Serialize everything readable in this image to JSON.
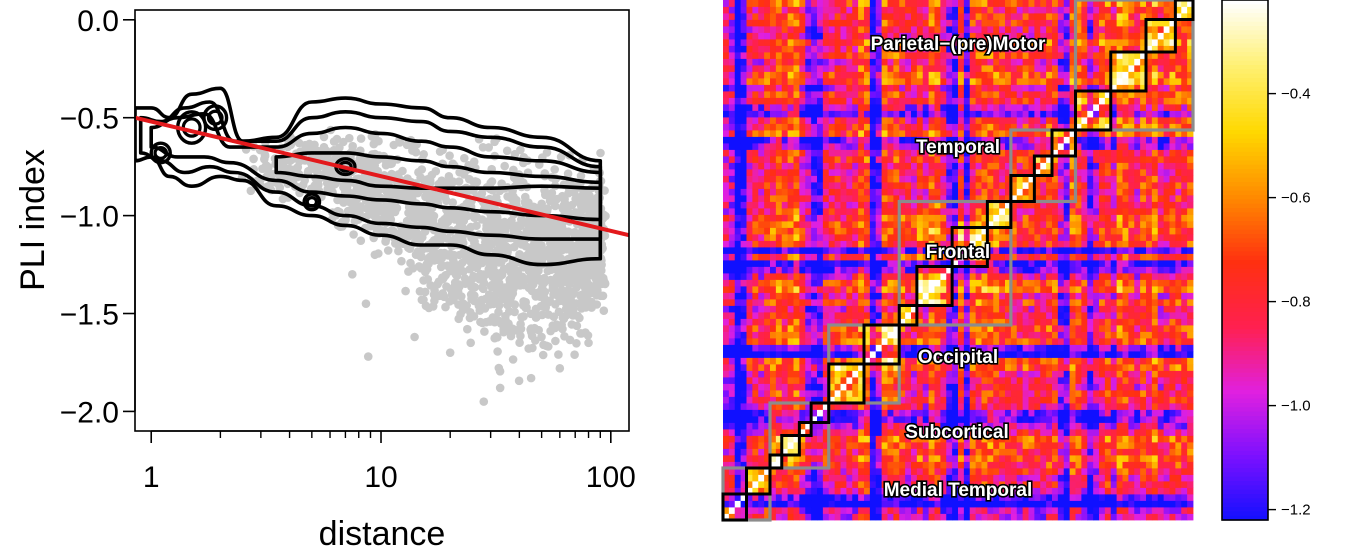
{
  "chart_data": [
    {
      "type": "scatter",
      "xlabel": "distance",
      "ylabel": "PLI index",
      "x_scale": "log",
      "xlim": [
        0.85,
        120
      ],
      "ylim": [
        -2.1,
        0.05
      ],
      "x_ticks": [
        {
          "value": 1,
          "label": "1"
        },
        {
          "value": 10,
          "label": "10"
        },
        {
          "value": 100,
          "label": "100"
        }
      ],
      "x_minor_ticks": [
        2,
        3,
        4,
        5,
        6,
        7,
        8,
        9,
        20,
        30,
        40,
        50,
        60,
        70,
        80,
        90
      ],
      "y_ticks": [
        {
          "value": 0.0,
          "label": "0.0"
        },
        {
          "value": -0.5,
          "label": "−0.5"
        },
        {
          "value": -1.0,
          "label": "−1.0"
        },
        {
          "value": -1.5,
          "label": "−1.5"
        },
        {
          "value": -2.0,
          "label": "−2.0"
        }
      ],
      "points_color": "#c8c8c8",
      "points_description_note": "",
      "scatter_envelope": [
        [
          2.5,
          -0.55,
          -0.95
        ],
        [
          5,
          -0.5,
          -1.0
        ],
        [
          10,
          -0.5,
          -1.3
        ],
        [
          20,
          -0.55,
          -1.75
        ],
        [
          40,
          -0.55,
          -1.9
        ],
        [
          90,
          -0.6,
          -1.7
        ]
      ],
      "scatter_outliers": [
        [
          8.6,
          -1.45
        ],
        [
          8.8,
          -1.72
        ],
        [
          7.5,
          -1.3
        ],
        [
          9.4,
          -1.2
        ],
        [
          6.5,
          -1.05
        ],
        [
          28,
          -1.95
        ],
        [
          33,
          -1.88
        ],
        [
          45,
          -1.83
        ],
        [
          60,
          -1.78
        ],
        [
          80,
          -1.65
        ],
        [
          14,
          -1.62
        ],
        [
          20,
          -1.7
        ]
      ],
      "regression_line": {
        "color": "#e3191c",
        "x": [
          0.85,
          120
        ],
        "y": [
          -0.5,
          -1.1
        ]
      },
      "contour_color": "#000000",
      "contour_levels": [
        {
          "x": [
            0.85,
            1.0,
            1.2,
            1.5,
            2.0,
            2.5,
            3.5,
            5,
            7,
            10,
            15,
            20,
            30,
            50,
            90
          ],
          "upper": [
            -0.45,
            -0.45,
            -0.5,
            -0.38,
            -0.35,
            -0.62,
            -0.6,
            -0.42,
            -0.4,
            -0.43,
            -0.45,
            -0.5,
            -0.55,
            -0.6,
            -0.72
          ],
          "lower": [
            -0.72,
            -0.7,
            -0.8,
            -0.85,
            -0.8,
            -0.82,
            -0.95,
            -1.0,
            -1.05,
            -1.1,
            -1.15,
            -1.15,
            -1.2,
            -1.25,
            -1.22
          ]
        },
        {
          "x": [
            0.9,
            1.1,
            1.4,
            1.8,
            2.3,
            3.5,
            5,
            7,
            10,
            15,
            20,
            30,
            50,
            90
          ],
          "upper": [
            -0.5,
            -0.52,
            -0.45,
            -0.42,
            -0.62,
            -0.62,
            -0.5,
            -0.47,
            -0.5,
            -0.52,
            -0.57,
            -0.6,
            -0.65,
            -0.75
          ],
          "lower": [
            -0.68,
            -0.72,
            -0.78,
            -0.75,
            -0.78,
            -0.88,
            -0.95,
            -1.0,
            -1.04,
            -1.06,
            -1.08,
            -1.1,
            -1.12,
            -1.12
          ]
        },
        {
          "x": [
            1.0,
            1.3,
            1.7,
            2.2,
            3.5,
            5,
            7,
            10,
            15,
            20,
            30,
            50,
            90
          ],
          "upper": [
            -0.55,
            -0.5,
            -0.48,
            -0.65,
            -0.65,
            -0.58,
            -0.55,
            -0.58,
            -0.62,
            -0.65,
            -0.7,
            -0.72,
            -0.78
          ],
          "lower": [
            -0.65,
            -0.7,
            -0.7,
            -0.73,
            -0.82,
            -0.88,
            -0.9,
            -0.92,
            -0.94,
            -0.96,
            -0.98,
            -1.0,
            -1.02
          ]
        },
        {
          "x": [
            3.5,
            5,
            7,
            10,
            15,
            20,
            30,
            50,
            90
          ],
          "upper": [
            -0.7,
            -0.68,
            -0.68,
            -0.7,
            -0.72,
            -0.75,
            -0.78,
            -0.8,
            -0.83
          ],
          "lower": [
            -0.78,
            -0.8,
            -0.82,
            -0.85,
            -0.86,
            -0.86,
            -0.86,
            -0.85,
            -0.86
          ]
        }
      ],
      "contour_islands": [
        {
          "cx": 1.5,
          "cy": -0.55,
          "rx_factor": 1.15,
          "ry": 0.08
        },
        {
          "cx": 1.9,
          "cy": -0.5,
          "rx_factor": 1.12,
          "ry": 0.06
        },
        {
          "cx": 5.0,
          "cy": -0.93,
          "rx_factor": 1.08,
          "ry": 0.04
        },
        {
          "cx": 7.0,
          "cy": -0.75,
          "rx_factor": 1.1,
          "ry": 0.04
        },
        {
          "cx": 1.1,
          "cy": -0.68,
          "rx_factor": 1.1,
          "ry": 0.05
        }
      ]
    },
    {
      "type": "heatmap",
      "colorbar": {
        "ticks": [
          {
            "value": -0.4,
            "label": "−0.4"
          },
          {
            "value": -0.6,
            "label": "−0.6"
          },
          {
            "value": -0.8,
            "label": "−0.8"
          },
          {
            "value": -1.0,
            "label": "−1.0"
          },
          {
            "value": -1.2,
            "label": "−1.2"
          }
        ],
        "range": [
          -1.22,
          -0.22
        ],
        "colors": [
          "#1010ff",
          "#7a10ff",
          "#e020e0",
          "#ff2050",
          "#ff3010",
          "#ff8a00",
          "#ffd800",
          "#fff070",
          "#ffffff"
        ]
      },
      "grid_size": 80,
      "groups": [
        {
          "label": "Medial Temporal",
          "range": [
            0,
            8
          ]
        },
        {
          "label": "Subcortical",
          "range": [
            8,
            18
          ]
        },
        {
          "label": "Occipital",
          "range": [
            18,
            30
          ]
        },
        {
          "label": "Frontal",
          "range": [
            30,
            49
          ]
        },
        {
          "label": "Temporal",
          "range": [
            49,
            60
          ]
        },
        {
          "label": "Parietal−(pre)Motor",
          "range": [
            60,
            80
          ]
        }
      ],
      "subgroups": [
        [
          0,
          4
        ],
        [
          4,
          8
        ],
        [
          8,
          10
        ],
        [
          10,
          13
        ],
        [
          13,
          15
        ],
        [
          15,
          18
        ],
        [
          18,
          24
        ],
        [
          24,
          30
        ],
        [
          30,
          33
        ],
        [
          33,
          39
        ],
        [
          39,
          45
        ],
        [
          45,
          49
        ],
        [
          49,
          53
        ],
        [
          53,
          56
        ],
        [
          56,
          60
        ],
        [
          60,
          66
        ],
        [
          66,
          72
        ],
        [
          72,
          77
        ],
        [
          77,
          80
        ]
      ],
      "group_outline_color": "#8c8c8c",
      "subgroup_outline_color": "#000000"
    }
  ]
}
